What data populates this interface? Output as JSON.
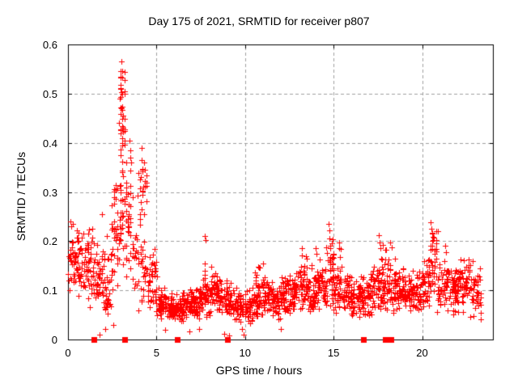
{
  "chart_data": {
    "type": "scatter",
    "title": "Day 175 of 2021, SRMTID for receiver p807",
    "xlabel": "GPS time / hours",
    "ylabel": "SRMTID / TECUs",
    "xlim": [
      0,
      24
    ],
    "ylim": [
      0,
      0.6
    ],
    "x_ticks": [
      0,
      5,
      10,
      15,
      20
    ],
    "x_tick_labels": [
      "0",
      "5",
      "10",
      "15",
      "20"
    ],
    "y_ticks": [
      0,
      0.1,
      0.2,
      0.3,
      0.4,
      0.5,
      0.6
    ],
    "y_tick_labels": [
      "0",
      "0.1",
      "0.2",
      "0.3",
      "0.4",
      "0.5",
      "0.6"
    ],
    "grid": {
      "show": true,
      "style": "dashed",
      "at_x": [
        5,
        10,
        15,
        20
      ],
      "at_y": [
        0.1,
        0.2,
        0.3,
        0.4,
        0.5
      ]
    },
    "legend": null,
    "marker": {
      "shape": "plus",
      "size": 7,
      "color": "#ff0000"
    },
    "colors": {
      "background": "#ffffff",
      "axis": "#000000",
      "grid": "#a0a0a0",
      "marker": "#ff0000"
    },
    "cloud_segment_format": [
      "t_start_h",
      "t_end_h",
      "count",
      "y_min",
      "y_max",
      "shape_exponent",
      "x_step_h"
    ],
    "cloud_segments": [
      [
        0.0,
        0.5,
        40,
        0.1,
        0.25,
        1.1,
        0.05
      ],
      [
        0.5,
        1.0,
        40,
        0.08,
        0.24,
        1.1,
        0.05
      ],
      [
        1.0,
        1.5,
        42,
        0.06,
        0.26,
        1.2,
        0.05
      ],
      [
        1.5,
        2.0,
        40,
        0.05,
        0.23,
        1.2,
        0.05
      ],
      [
        2.0,
        2.5,
        40,
        0.04,
        0.24,
        1.2,
        0.05
      ],
      [
        2.5,
        2.9,
        36,
        0.1,
        0.36,
        1.0,
        0.1
      ],
      [
        2.9,
        3.25,
        55,
        0.1,
        0.57,
        1.0,
        0.11
      ],
      [
        3.25,
        3.6,
        34,
        0.1,
        0.4,
        1.0,
        0.11
      ],
      [
        3.6,
        3.95,
        16,
        0.08,
        0.22,
        1.1,
        0.05
      ],
      [
        3.95,
        4.45,
        22,
        0.22,
        0.39,
        1.0,
        0.12
      ],
      [
        3.95,
        4.45,
        26,
        0.05,
        0.22,
        1.0,
        0.05
      ],
      [
        4.45,
        5.0,
        40,
        0.06,
        0.19,
        1.2,
        0.05
      ],
      [
        5.0,
        5.5,
        44,
        0.04,
        0.12,
        1.1,
        0.05
      ],
      [
        5.5,
        6.0,
        46,
        0.035,
        0.1,
        1.1,
        0.05
      ],
      [
        6.0,
        6.5,
        46,
        0.03,
        0.1,
        1.1,
        0.05
      ],
      [
        6.5,
        7.0,
        46,
        0.035,
        0.11,
        1.1,
        0.05
      ],
      [
        7.0,
        7.5,
        46,
        0.03,
        0.12,
        1.1,
        0.05
      ],
      [
        7.5,
        8.0,
        44,
        0.04,
        0.145,
        1.1,
        0.05
      ],
      [
        8.0,
        8.5,
        44,
        0.05,
        0.15,
        1.0,
        0.05
      ],
      [
        8.5,
        9.0,
        44,
        0.05,
        0.13,
        1.1,
        0.05
      ],
      [
        9.0,
        9.5,
        44,
        0.04,
        0.12,
        1.1,
        0.05
      ],
      [
        9.5,
        10.0,
        44,
        0.03,
        0.1,
        1.1,
        0.05
      ],
      [
        10.0,
        10.5,
        44,
        0.03,
        0.11,
        1.1,
        0.05
      ],
      [
        10.5,
        11.0,
        44,
        0.04,
        0.15,
        1.1,
        0.05
      ],
      [
        11.0,
        11.5,
        44,
        0.05,
        0.13,
        1.1,
        0.05
      ],
      [
        11.5,
        12.0,
        44,
        0.04,
        0.12,
        1.1,
        0.05
      ],
      [
        12.0,
        12.5,
        44,
        0.05,
        0.14,
        1.1,
        0.05
      ],
      [
        12.5,
        13.0,
        44,
        0.05,
        0.15,
        1.1,
        0.05
      ],
      [
        13.0,
        13.5,
        46,
        0.06,
        0.18,
        1.2,
        0.05
      ],
      [
        13.5,
        14.0,
        44,
        0.05,
        0.17,
        1.2,
        0.05
      ],
      [
        14.0,
        14.5,
        46,
        0.06,
        0.18,
        1.2,
        0.05
      ],
      [
        14.5,
        15.0,
        48,
        0.06,
        0.22,
        1.3,
        0.05
      ],
      [
        15.0,
        15.5,
        46,
        0.05,
        0.2,
        1.3,
        0.05
      ],
      [
        15.5,
        16.0,
        44,
        0.05,
        0.15,
        1.2,
        0.05
      ],
      [
        16.0,
        16.5,
        44,
        0.04,
        0.13,
        1.1,
        0.05
      ],
      [
        16.5,
        17.0,
        44,
        0.04,
        0.14,
        1.1,
        0.05
      ],
      [
        17.0,
        17.5,
        44,
        0.05,
        0.15,
        1.2,
        0.05
      ],
      [
        17.5,
        18.0,
        46,
        0.05,
        0.2,
        1.3,
        0.05
      ],
      [
        18.0,
        18.5,
        46,
        0.05,
        0.19,
        1.3,
        0.05
      ],
      [
        18.5,
        19.0,
        44,
        0.05,
        0.16,
        1.2,
        0.05
      ],
      [
        19.0,
        19.5,
        44,
        0.05,
        0.14,
        1.1,
        0.05
      ],
      [
        19.5,
        20.0,
        44,
        0.05,
        0.15,
        1.1,
        0.05
      ],
      [
        20.0,
        20.5,
        44,
        0.06,
        0.18,
        1.2,
        0.05
      ],
      [
        20.5,
        20.85,
        30,
        0.08,
        0.24,
        1.0,
        0.08
      ],
      [
        20.85,
        21.5,
        48,
        0.05,
        0.185,
        1.2,
        0.05
      ],
      [
        21.5,
        22.0,
        44,
        0.05,
        0.16,
        1.1,
        0.05
      ],
      [
        22.0,
        22.5,
        46,
        0.05,
        0.17,
        1.1,
        0.05
      ],
      [
        22.5,
        23.3,
        58,
        0.04,
        0.165,
        1.1,
        0.05
      ]
    ],
    "notable_points": [
      [
        3.02,
        0.565
      ],
      [
        2.98,
        0.545
      ],
      [
        3.06,
        0.532
      ],
      [
        2.95,
        0.512
      ],
      [
        3.01,
        0.503
      ],
      [
        3.08,
        0.5
      ],
      [
        2.93,
        0.49
      ],
      [
        3.0,
        0.47
      ],
      [
        3.1,
        0.455
      ],
      [
        2.9,
        0.44
      ],
      [
        3.13,
        0.43
      ],
      [
        2.96,
        0.42
      ],
      [
        3.05,
        0.41
      ],
      [
        3.48,
        0.405
      ],
      [
        3.52,
        0.385
      ],
      [
        3.55,
        0.36
      ],
      [
        4.15,
        0.39
      ],
      [
        4.18,
        0.365
      ],
      [
        4.22,
        0.345
      ],
      [
        4.12,
        0.33
      ],
      [
        4.25,
        0.31
      ],
      [
        4.2,
        0.295
      ],
      [
        4.1,
        0.28
      ],
      [
        4.17,
        0.265
      ],
      [
        0.15,
        0.24
      ],
      [
        0.2,
        0.23
      ],
      [
        1.9,
        0.255
      ],
      [
        2.45,
        0.235
      ],
      [
        7.72,
        0.21
      ],
      [
        7.75,
        0.203
      ],
      [
        7.74,
        0.155
      ],
      [
        7.73,
        0.14
      ],
      [
        10.85,
        0.147
      ],
      [
        11.0,
        0.155
      ],
      [
        13.2,
        0.186
      ],
      [
        13.23,
        0.171
      ],
      [
        14.0,
        0.186
      ],
      [
        14.05,
        0.175
      ],
      [
        14.72,
        0.235
      ],
      [
        14.75,
        0.222
      ],
      [
        14.78,
        0.205
      ],
      [
        14.8,
        0.19
      ],
      [
        15.3,
        0.198
      ],
      [
        15.33,
        0.185
      ],
      [
        17.55,
        0.212
      ],
      [
        17.6,
        0.198
      ],
      [
        17.64,
        0.186
      ],
      [
        18.2,
        0.198
      ],
      [
        18.3,
        0.188
      ],
      [
        20.5,
        0.238
      ],
      [
        20.52,
        0.225
      ],
      [
        20.55,
        0.215
      ],
      [
        20.57,
        0.2
      ],
      [
        20.48,
        0.19
      ],
      [
        21.3,
        0.19
      ],
      [
        21.35,
        0.178
      ],
      [
        22.65,
        0.163
      ]
    ],
    "low_outlier_points": [
      [
        1.78,
        0.01
      ],
      [
        2.1,
        0.022
      ],
      [
        2.55,
        0.03
      ],
      [
        5.5,
        0.02
      ],
      [
        6.85,
        0.016
      ],
      [
        7.4,
        0.021
      ],
      [
        8.8,
        0.012
      ],
      [
        9.1,
        0.008
      ],
      [
        9.85,
        0.022
      ],
      [
        9.92,
        0.01
      ],
      [
        12.0,
        0.021
      ]
    ],
    "zero_epoch_markers": {
      "shape": "filled-square",
      "size": 7,
      "color": "#ff0000",
      "y": 0,
      "hours": [
        1.45,
        3.2,
        6.15,
        9.0,
        16.7,
        17.9,
        18.25
      ]
    }
  }
}
